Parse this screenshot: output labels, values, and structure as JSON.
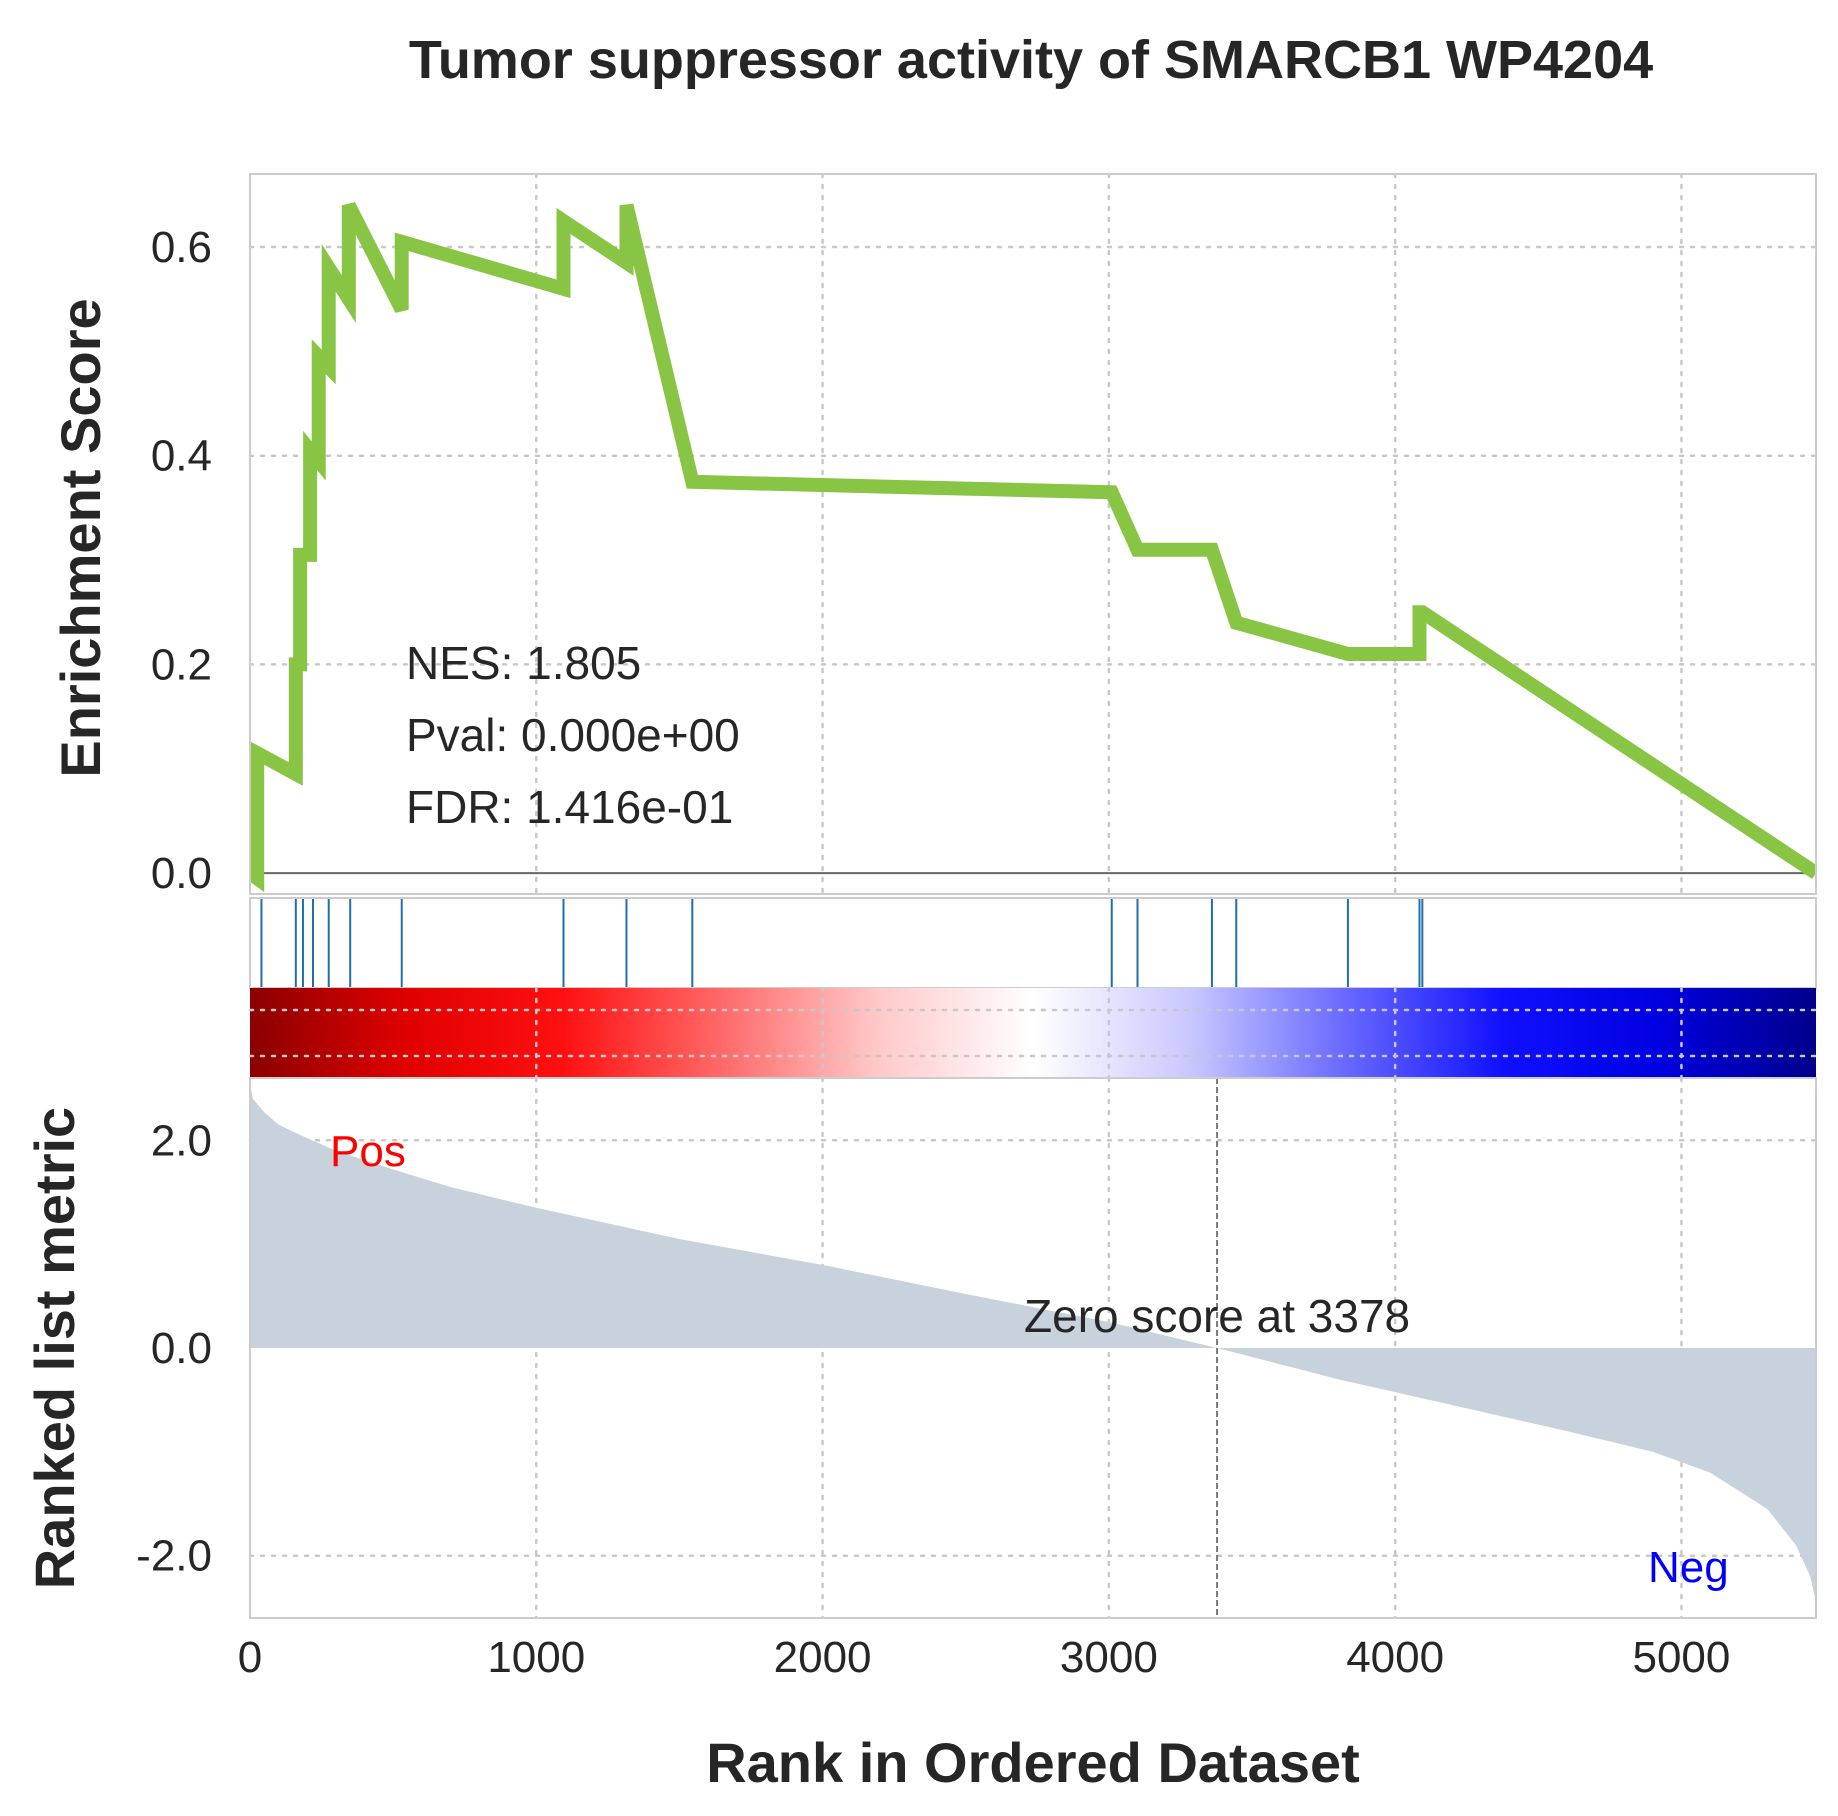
{
  "chart_data": {
    "type": "line",
    "title": "Tumor suppressor activity of SMARCB1 WP4204",
    "xlabel": "Rank in Ordered Dataset",
    "x_ticks": [
      0,
      1000,
      2000,
      3000,
      4000,
      5000
    ],
    "xlim": [
      0,
      5470
    ],
    "enrichment": {
      "ylabel": "Enrichment Score",
      "y_ticks": [
        "0.0",
        "0.2",
        "0.4",
        "0.6"
      ],
      "y_tick_values": [
        0.0,
        0.2,
        0.4,
        0.6
      ],
      "ylim": [
        -0.02,
        0.67
      ],
      "color": "#88c544",
      "series": {
        "x": [
          0,
          25,
          25,
          160,
          160,
          175,
          175,
          210,
          210,
          240,
          240,
          275,
          275,
          345,
          345,
          530,
          530,
          1095,
          1095,
          1315,
          1315,
          1545,
          1545,
          3010,
          3010,
          3100,
          3100,
          3360,
          3360,
          3445,
          3445,
          3835,
          3835,
          4085,
          4085,
          4095,
          4095,
          5470
        ],
        "y": [
          0.0,
          -0.005,
          0.115,
          0.095,
          0.2,
          0.2,
          0.305,
          0.305,
          0.405,
          0.395,
          0.495,
          0.485,
          0.58,
          0.55,
          0.64,
          0.54,
          0.605,
          0.56,
          0.625,
          0.585,
          0.64,
          0.375,
          0.375,
          0.365,
          0.365,
          0.31,
          0.31,
          0.31,
          0.31,
          0.24,
          0.24,
          0.21,
          0.21,
          0.21,
          0.25,
          0.25,
          0.25,
          0.0
        ]
      },
      "stats": {
        "nes": "NES: 1.805",
        "pval": "Pval: 0.000e+00",
        "fdr": "FDR: 1.416e-01"
      }
    },
    "hits": {
      "color": "#1f6fa8",
      "positions": [
        40,
        160,
        185,
        220,
        275,
        350,
        530,
        1095,
        1315,
        1545,
        3010,
        3100,
        3360,
        3445,
        3835,
        4085,
        4095
      ]
    },
    "colorbar": {
      "colors": [
        "#8b0000",
        "#e00000",
        "#ff1010",
        "#ff6868",
        "#ffc8c8",
        "#ffffff",
        "#c8c8ff",
        "#6868ff",
        "#1010ff",
        "#0000e0",
        "#00008b"
      ]
    },
    "ranked": {
      "ylabel": "Ranked list metric",
      "y_ticks": [
        "-2.0",
        "0.0",
        "2.0"
      ],
      "y_tick_values": [
        -2.0,
        0.0,
        2.0
      ],
      "ylim": [
        -2.6,
        2.6
      ],
      "fill_color": "#c8d2dc",
      "series": {
        "x": [
          0,
          10,
          50,
          100,
          200,
          300,
          500,
          700,
          1000,
          1500,
          2000,
          2500,
          3000,
          3378,
          3800,
          4200,
          4600,
          4900,
          5100,
          5300,
          5400,
          5450,
          5470
        ],
        "y": [
          2.55,
          2.4,
          2.27,
          2.15,
          2.02,
          1.9,
          1.72,
          1.55,
          1.35,
          1.05,
          0.8,
          0.52,
          0.25,
          0.0,
          -0.3,
          -0.55,
          -0.8,
          -1.0,
          -1.2,
          -1.55,
          -1.9,
          -2.2,
          -2.45
        ]
      },
      "zero_cross_rank": 3378,
      "zero_label": "Zero score at 3378",
      "pos_label": "Pos",
      "neg_label": "Neg",
      "pos_color": "#ff0000",
      "neg_color": "#0000ff"
    }
  }
}
